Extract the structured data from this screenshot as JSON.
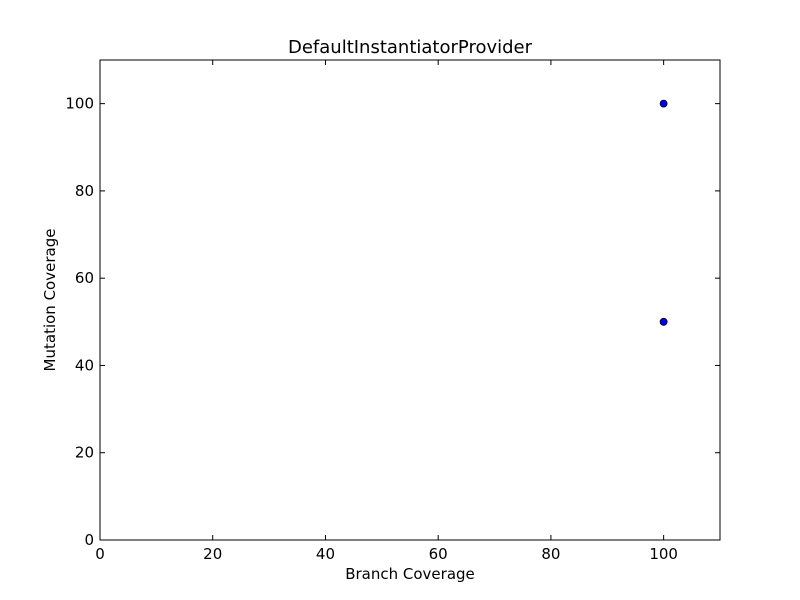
{
  "chart_data": {
    "type": "scatter",
    "title": "DefaultInstantiatorProvider",
    "xlabel": "Branch Coverage",
    "ylabel": "Mutation Coverage",
    "xlim": [
      0,
      110
    ],
    "ylim": [
      0,
      110
    ],
    "xticks": [
      0,
      20,
      40,
      60,
      80,
      100
    ],
    "yticks": [
      0,
      20,
      40,
      60,
      80,
      100
    ],
    "grid": false,
    "points": [
      {
        "x": 100,
        "y": 100
      },
      {
        "x": 100,
        "y": 50
      }
    ],
    "marker_color": "#0000ff",
    "marker_edge_color": "#000000"
  }
}
